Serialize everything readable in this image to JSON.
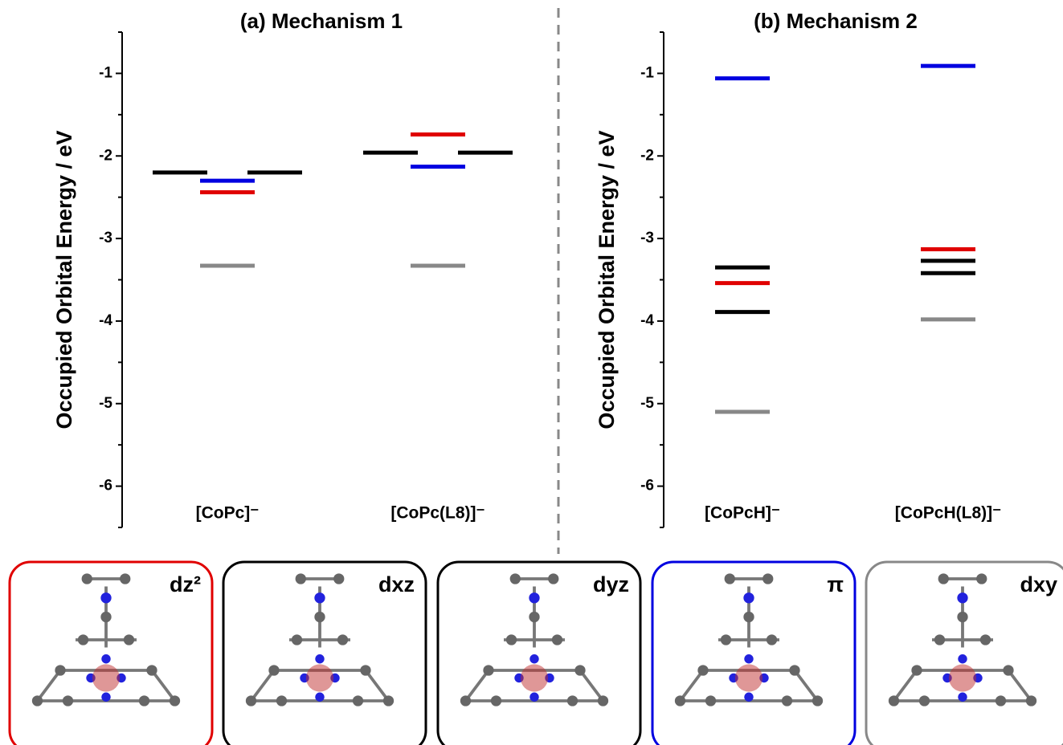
{
  "chart_data": [
    {
      "type": "level",
      "title": "(a) Mechanism 1",
      "ylabel": "Occupied Orbital Energy / eV",
      "categories": [
        "[CoPc]⁻",
        "[CoPc(L8)]⁻"
      ],
      "ylim": [
        -6.5,
        -0.5
      ],
      "yticks": [
        -1,
        -2,
        -3,
        -4,
        -5,
        -6
      ],
      "yminorticks": [
        -0.5,
        -1.5,
        -2.5,
        -3.5,
        -4.5,
        -5.5,
        -6.5
      ],
      "series": [
        {
          "color": "#e00000",
          "values": [
            -2.44,
            -1.74
          ]
        },
        {
          "color": "#000000",
          "values": [
            -2.2,
            -1.96
          ]
        },
        {
          "color": "#000000",
          "values": [
            -2.2,
            -1.96
          ]
        },
        {
          "color": "#0000e0",
          "values": [
            -2.3,
            -2.13
          ]
        },
        {
          "color": "#888888",
          "values": [
            -3.33,
            -3.33
          ]
        }
      ]
    },
    {
      "type": "level",
      "title": "(b) Mechanism 2",
      "ylabel": "Occupied Orbital Energy / eV",
      "categories": [
        "[CoPcH]⁻",
        "[CoPcH(L8)]⁻"
      ],
      "ylim": [
        -6.5,
        -0.5
      ],
      "yticks": [
        -1,
        -2,
        -3,
        -4,
        -5,
        -6
      ],
      "yminorticks": [
        -0.5,
        -1.5,
        -2.5,
        -3.5,
        -4.5,
        -5.5,
        -6.5
      ],
      "series": [
        {
          "color": "#e00000",
          "values": [
            -3.54,
            -3.13
          ]
        },
        {
          "color": "#000000",
          "values": [
            -3.35,
            -3.27
          ]
        },
        {
          "color": "#000000",
          "values": [
            -3.89,
            -3.42
          ]
        },
        {
          "color": "#0000e0",
          "values": [
            -1.06,
            -0.91
          ]
        },
        {
          "color": "#888888",
          "values": [
            -5.1,
            -3.98
          ]
        }
      ]
    }
  ],
  "orbitals": [
    {
      "label": "dz²",
      "color": "#e00000",
      "text_color": "#b00000"
    },
    {
      "label": "dxz",
      "color": "#000000",
      "text_color": "#000000"
    },
    {
      "label": "dyz",
      "color": "#000000",
      "text_color": "#000000"
    },
    {
      "label": "π",
      "color": "#0000e0",
      "text_color": "#0000b0"
    },
    {
      "label": "dxy",
      "color": "#888888",
      "text_color": "#888888"
    }
  ]
}
